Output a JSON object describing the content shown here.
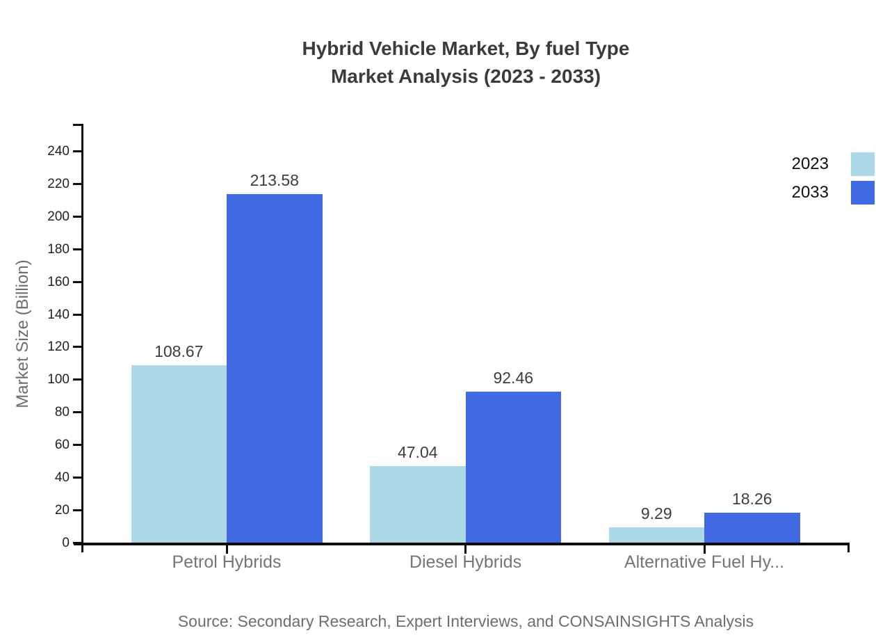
{
  "title": {
    "line1": "Hybrid Vehicle Market, By fuel Type",
    "line2": "Market Analysis (2023 - 2033)"
  },
  "source": "Source: Secondary Research, Expert Interviews, and CONSAINSIGHTS Analysis",
  "chart_data": {
    "type": "bar",
    "categories": [
      "Petrol Hybrids",
      "Diesel Hybrids",
      "Alternative Fuel Hy..."
    ],
    "series": [
      {
        "name": "2023",
        "color": "#ADD8E6",
        "values": [
          108.67,
          47.04,
          9.29
        ]
      },
      {
        "name": "2033",
        "color": "#4169E1",
        "values": [
          213.58,
          92.46,
          18.26
        ]
      }
    ],
    "title": "Hybrid Vehicle Market, By fuel Type Market Analysis (2023 - 2033)",
    "xlabel": "",
    "ylabel": "Market Size (Billion)",
    "ylim": [
      0,
      240
    ],
    "ytick_step": 20,
    "grid": false,
    "legend_position": "top-right",
    "value_labels": true
  },
  "colors": {
    "axis": "#0d0d0d",
    "title_text": "#3b3b3b",
    "tick_label_text": "#222222",
    "category_text": "#757575",
    "value_label_text": "#3d3d3d",
    "muted_text": "#6e6e6e",
    "series_2023": "#ADD8E6",
    "series_2033": "#4169E1",
    "background": "#ffffff"
  }
}
